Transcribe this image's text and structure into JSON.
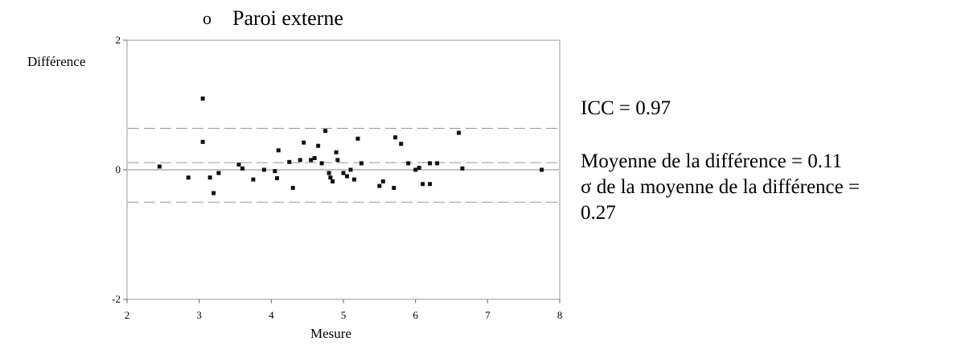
{
  "heading": {
    "bullet": "o",
    "text": "Paroi externe"
  },
  "stats": {
    "icc": "ICC = 0.97",
    "mean_diff": "Moyenne de la différence = 0.11",
    "sigma_line1": "σ de la moyenne de la différence =",
    "sigma_line2": "0.27"
  },
  "chart_data": {
    "type": "scatter",
    "ylabel": "Différence",
    "xlabel": "Mesure",
    "xlim": [
      2,
      8
    ],
    "ylim": [
      -2,
      2
    ],
    "x_ticks": [
      "2",
      "3",
      "4",
      "5",
      "6",
      "7",
      "8"
    ],
    "y_ticks": [
      "2",
      "0",
      "-2"
    ],
    "reference_lines": [
      {
        "y": 0.64,
        "style": "dashed"
      },
      {
        "y": 0.11,
        "style": "dashed"
      },
      {
        "y": 0.0,
        "style": "solid"
      },
      {
        "y": -0.5,
        "style": "dashed"
      }
    ],
    "points": [
      [
        2.45,
        0.05
      ],
      [
        2.85,
        -0.12
      ],
      [
        3.05,
        1.1
      ],
      [
        3.05,
        0.43
      ],
      [
        3.15,
        -0.12
      ],
      [
        3.2,
        -0.36
      ],
      [
        3.27,
        -0.05
      ],
      [
        3.55,
        0.08
      ],
      [
        3.6,
        0.02
      ],
      [
        3.75,
        -0.15
      ],
      [
        3.9,
        0.0
      ],
      [
        4.05,
        -0.02
      ],
      [
        4.08,
        -0.13
      ],
      [
        4.1,
        0.3
      ],
      [
        4.25,
        0.12
      ],
      [
        4.3,
        -0.28
      ],
      [
        4.4,
        0.15
      ],
      [
        4.45,
        0.42
      ],
      [
        4.55,
        0.15
      ],
      [
        4.6,
        0.18
      ],
      [
        4.65,
        0.37
      ],
      [
        4.7,
        0.1
      ],
      [
        4.75,
        0.6
      ],
      [
        4.8,
        -0.05
      ],
      [
        4.82,
        -0.12
      ],
      [
        4.85,
        -0.18
      ],
      [
        4.9,
        0.27
      ],
      [
        4.92,
        0.15
      ],
      [
        5.0,
        -0.05
      ],
      [
        5.05,
        -0.1
      ],
      [
        5.1,
        0.0
      ],
      [
        5.15,
        -0.15
      ],
      [
        5.2,
        0.48
      ],
      [
        5.25,
        0.1
      ],
      [
        5.5,
        -0.25
      ],
      [
        5.55,
        -0.18
      ],
      [
        5.7,
        -0.28
      ],
      [
        5.72,
        0.5
      ],
      [
        5.8,
        0.4
      ],
      [
        5.9,
        0.1
      ],
      [
        6.0,
        0.0
      ],
      [
        6.05,
        0.03
      ],
      [
        6.1,
        -0.22
      ],
      [
        6.2,
        0.1
      ],
      [
        6.2,
        -0.22
      ],
      [
        6.3,
        0.1
      ],
      [
        6.6,
        0.57
      ],
      [
        6.65,
        0.02
      ],
      [
        7.75,
        0.0
      ]
    ]
  }
}
